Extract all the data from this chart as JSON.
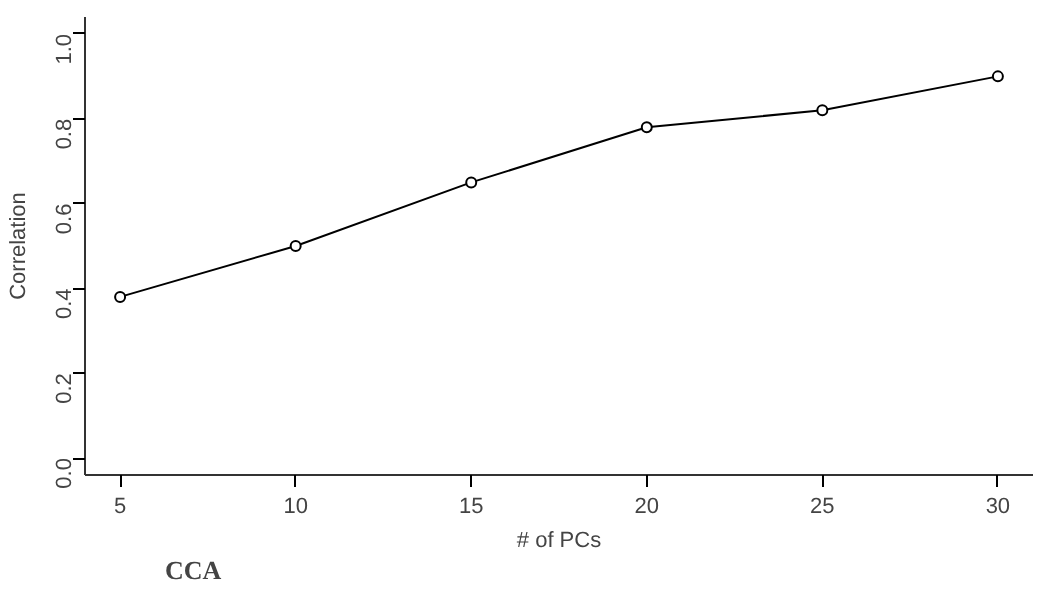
{
  "chart_data": {
    "type": "line",
    "xlabel": "# of PCs",
    "ylabel": "Correlation",
    "x": [
      5,
      10,
      15,
      20,
      25,
      30
    ],
    "series": [
      {
        "color": "#000000",
        "values": [
          0.38,
          0.5,
          0.65,
          0.78,
          0.82,
          0.9
        ]
      }
    ],
    "xlim": [
      4,
      31
    ],
    "ylim": [
      -0.04,
      1.04
    ],
    "xticks": [
      5,
      10,
      15,
      20,
      25,
      30
    ],
    "yticks": [
      {
        "value": 0,
        "label": "0.0"
      },
      0.2,
      0.4,
      0.6,
      0.8,
      {
        "value": 1,
        "label": "1.0"
      }
    ],
    "marker": "circle",
    "line_style": "solid",
    "grid": false,
    "annotations": [
      "CCA"
    ]
  }
}
